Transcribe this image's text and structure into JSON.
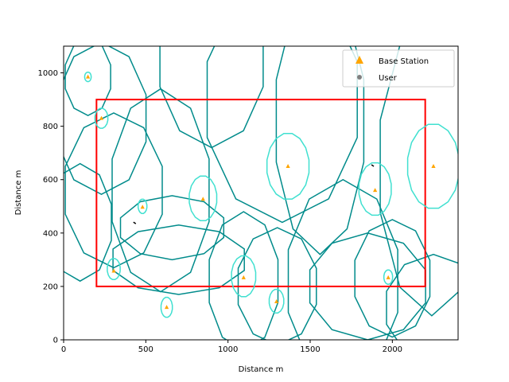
{
  "chart_data": {
    "type": "scatter",
    "title": "",
    "xlabel": "Distance m",
    "ylabel": "Distance m",
    "xlim": [
      0,
      2400
    ],
    "ylim": [
      0,
      1100
    ],
    "xticks": [
      0,
      500,
      1000,
      1500,
      2000
    ],
    "yticks": [
      0,
      200,
      400,
      600,
      800,
      1000
    ],
    "grid": false,
    "legend_position": "top-right",
    "legend": [
      {
        "label": "Base Station",
        "marker": "triangle",
        "color": "#ffa500"
      },
      {
        "label": "User",
        "marker": "circle",
        "color": "#808080"
      }
    ],
    "rectangle": {
      "x0": 200,
      "y0": 200,
      "x1": 2200,
      "y1": 900,
      "color": "#ff0000"
    },
    "base_stations": [
      {
        "x": 148,
        "y": 985
      },
      {
        "x": 230,
        "y": 830
      },
      {
        "x": 305,
        "y": 258
      },
      {
        "x": 480,
        "y": 497
      },
      {
        "x": 627,
        "y": 122
      },
      {
        "x": 848,
        "y": 527
      },
      {
        "x": 1095,
        "y": 233
      },
      {
        "x": 1295,
        "y": 143
      },
      {
        "x": 1365,
        "y": 650
      },
      {
        "x": 1895,
        "y": 560
      },
      {
        "x": 1975,
        "y": 233
      },
      {
        "x": 2250,
        "y": 650
      }
    ],
    "users": [
      {
        "x": 432,
        "y": 438
      },
      {
        "x": 1880,
        "y": 653
      }
    ],
    "small_coverage": [
      {
        "cx": 148,
        "cy": 985,
        "rx": 20,
        "ry": 18
      },
      {
        "cx": 230,
        "cy": 830,
        "rx": 40,
        "ry": 38
      },
      {
        "cx": 305,
        "cy": 265,
        "rx": 40,
        "ry": 40
      },
      {
        "cx": 480,
        "cy": 500,
        "rx": 27,
        "ry": 27
      },
      {
        "cx": 627,
        "cy": 122,
        "rx": 35,
        "ry": 38
      },
      {
        "cx": 848,
        "cy": 530,
        "rx": 85,
        "ry": 85
      },
      {
        "cx": 1095,
        "cy": 238,
        "rx": 75,
        "ry": 78
      },
      {
        "cx": 1295,
        "cy": 145,
        "rx": 45,
        "ry": 45
      },
      {
        "cx": 1365,
        "cy": 650,
        "rx": 130,
        "ry": 125
      },
      {
        "cx": 1895,
        "cy": 565,
        "rx": 100,
        "ry": 100
      },
      {
        "cx": 1975,
        "cy": 235,
        "rx": 27,
        "ry": 27
      },
      {
        "cx": 2250,
        "cy": 650,
        "rx": 160,
        "ry": 160
      }
    ],
    "large_coverage": [
      {
        "cx": 148,
        "cy": 985,
        "rx": 145,
        "ry": 145
      },
      {
        "cx": 230,
        "cy": 830,
        "rx": 285,
        "ry": 285
      },
      {
        "cx": 305,
        "cy": 560,
        "rx": 310,
        "ry": 290
      },
      {
        "cx": 590,
        "cy": 560,
        "rx": 310,
        "ry": 380
      },
      {
        "cx": 700,
        "cy": 300,
        "rx": 420,
        "ry": 130
      },
      {
        "cx": 660,
        "cy": 420,
        "rx": 330,
        "ry": 120
      },
      {
        "cx": 1095,
        "cy": 220,
        "rx": 220,
        "ry": 260
      },
      {
        "cx": 1300,
        "cy": 200,
        "rx": 250,
        "ry": 220
      },
      {
        "cx": 1330,
        "cy": 900,
        "rx": 480,
        "ry": 460
      },
      {
        "cx": 1560,
        "cy": 820,
        "rx": 280,
        "ry": 500
      },
      {
        "cx": 1700,
        "cy": 220,
        "rx": 350,
        "ry": 380
      },
      {
        "cx": 2240,
        "cy": 650,
        "rx": 330,
        "ry": 560
      },
      {
        "cx": 2000,
        "cy": 230,
        "rx": 240,
        "ry": 220
      },
      {
        "cx": 1850,
        "cy": 200,
        "rx": 370,
        "ry": 200
      },
      {
        "cx": 2250,
        "cy": 120,
        "rx": 300,
        "ry": 200
      },
      {
        "cx": 900,
        "cy": 1050,
        "rx": 330,
        "ry": 330
      },
      {
        "cx": 100,
        "cy": 440,
        "rx": 200,
        "ry": 220
      }
    ]
  }
}
